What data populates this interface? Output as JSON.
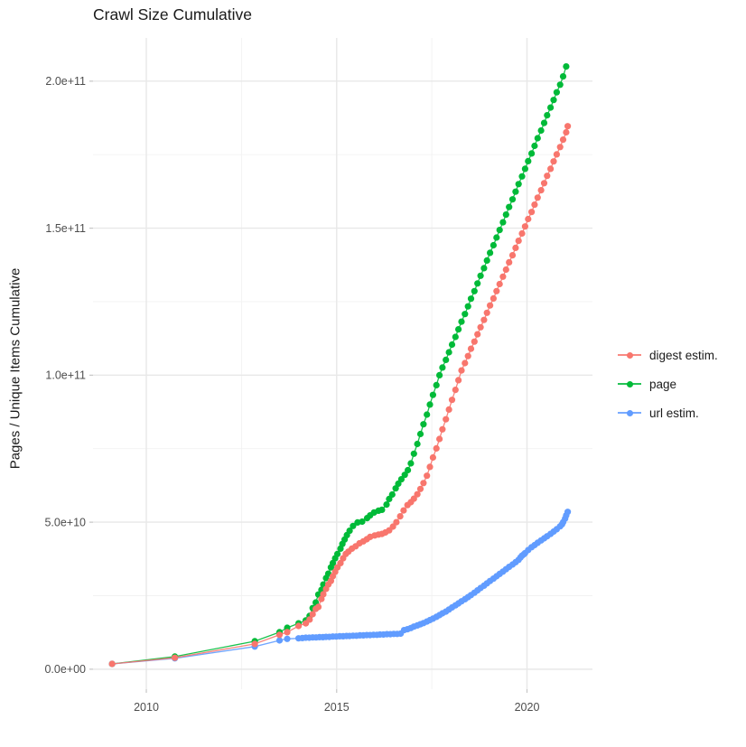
{
  "title": "Crawl Size Cumulative",
  "y_axis_title": "Pages / Unique Items Cumulative",
  "legend": {
    "items": [
      {
        "label": "digest estim.",
        "color": "#F8766D"
      },
      {
        "label": "page",
        "color": "#00BA38"
      },
      {
        "label": "url estim.",
        "color": "#619CFF"
      }
    ]
  },
  "colors": {
    "background": "#FFFFFF",
    "grid_major": "#E8E8E8",
    "grid_minor": "#F2F2F2",
    "tick_mark": "#C6C6C6",
    "tick_text": "#4D4D4D",
    "title_text": "#1A1A1A"
  },
  "chart_data": {
    "type": "line",
    "title": "Crawl Size Cumulative",
    "xlabel": "",
    "ylabel": "Pages / Unique Items Cumulative",
    "grid": true,
    "legend_position": "right",
    "marker": "point",
    "value_unit": "values stored in billions (1e9) of pages / unique items",
    "x_axis": {
      "domain": [
        2008.6,
        2021.72
      ],
      "tick_values": [
        2010,
        2015,
        2020
      ],
      "tick_labels": [
        "2010",
        "2015",
        "2020"
      ],
      "minor_tick_values": [
        2012.5,
        2017.5
      ]
    },
    "y_axis": {
      "domain_e9": [
        -6.8,
        214.7
      ],
      "tick_values_e9": [
        0,
        50,
        100,
        150,
        200
      ],
      "tick_labels": [
        "0.0e+00",
        "5.0e+10",
        "1.0e+11",
        "1.5e+11",
        "2.0e+11"
      ],
      "minor_tick_values_e9": [
        25,
        75,
        125,
        175
      ]
    },
    "series": [
      {
        "name": "digest estim.",
        "color": "#F8766D",
        "points_year_billions": [
          [
            2009.1,
            1.8
          ],
          [
            2010.75,
            3.9
          ],
          [
            2012.85,
            8.6
          ],
          [
            2013.5,
            11.7
          ],
          [
            2013.7,
            12.6
          ],
          [
            2014.0,
            14.7
          ],
          [
            2014.19,
            15.6
          ],
          [
            2014.29,
            16.9
          ],
          [
            2014.37,
            18.7
          ],
          [
            2014.45,
            20.5
          ],
          [
            2014.52,
            21.2
          ],
          [
            2014.6,
            23.9
          ],
          [
            2014.65,
            25.5
          ],
          [
            2014.72,
            27.3
          ],
          [
            2014.78,
            28.8
          ],
          [
            2014.85,
            30.0
          ],
          [
            2014.9,
            31.6
          ],
          [
            2014.96,
            33.1
          ],
          [
            2015.02,
            34.6
          ],
          [
            2015.1,
            36.1
          ],
          [
            2015.17,
            37.7
          ],
          [
            2015.24,
            39.2
          ],
          [
            2015.31,
            40.0
          ],
          [
            2015.4,
            41.0
          ],
          [
            2015.5,
            41.8
          ],
          [
            2015.6,
            42.8
          ],
          [
            2015.7,
            43.5
          ],
          [
            2015.79,
            44.2
          ],
          [
            2015.88,
            45.0
          ],
          [
            2016.0,
            45.5
          ],
          [
            2016.1,
            45.8
          ],
          [
            2016.19,
            46.0
          ],
          [
            2016.28,
            46.5
          ],
          [
            2016.38,
            47.2
          ],
          [
            2016.48,
            48.5
          ],
          [
            2016.57,
            50.0
          ],
          [
            2016.67,
            52.0
          ],
          [
            2016.76,
            54.0
          ],
          [
            2016.86,
            55.8
          ],
          [
            2016.95,
            56.8
          ],
          [
            2017.03,
            58.0
          ],
          [
            2017.12,
            59.5
          ],
          [
            2017.2,
            61.3
          ],
          [
            2017.28,
            63.3
          ],
          [
            2017.37,
            65.8
          ],
          [
            2017.45,
            68.8
          ],
          [
            2017.53,
            72.0
          ],
          [
            2017.62,
            75.1
          ],
          [
            2017.7,
            78.3
          ],
          [
            2017.78,
            81.6
          ],
          [
            2017.87,
            85.0
          ],
          [
            2017.95,
            88.3
          ],
          [
            2018.03,
            91.6
          ],
          [
            2018.12,
            95.0
          ],
          [
            2018.2,
            98.3
          ],
          [
            2018.28,
            101.6
          ],
          [
            2018.37,
            104.1
          ],
          [
            2018.45,
            106.5
          ],
          [
            2018.53,
            109.0
          ],
          [
            2018.62,
            111.4
          ],
          [
            2018.7,
            113.9
          ],
          [
            2018.78,
            116.3
          ],
          [
            2018.87,
            118.8
          ],
          [
            2018.95,
            121.2
          ],
          [
            2019.03,
            123.7
          ],
          [
            2019.12,
            126.1
          ],
          [
            2019.2,
            128.6
          ],
          [
            2019.28,
            131.0
          ],
          [
            2019.37,
            133.5
          ],
          [
            2019.45,
            135.9
          ],
          [
            2019.53,
            138.4
          ],
          [
            2019.62,
            140.8
          ],
          [
            2019.7,
            143.3
          ],
          [
            2019.78,
            145.7
          ],
          [
            2019.87,
            148.2
          ],
          [
            2019.95,
            150.6
          ],
          [
            2020.03,
            153.1
          ],
          [
            2020.12,
            155.5
          ],
          [
            2020.2,
            158.0
          ],
          [
            2020.28,
            160.4
          ],
          [
            2020.37,
            162.9
          ],
          [
            2020.45,
            165.3
          ],
          [
            2020.53,
            167.8
          ],
          [
            2020.62,
            170.2
          ],
          [
            2020.7,
            172.7
          ],
          [
            2020.78,
            175.1
          ],
          [
            2020.87,
            177.6
          ],
          [
            2020.95,
            180.1
          ],
          [
            2021.03,
            182.6
          ],
          [
            2021.07,
            184.7
          ]
        ]
      },
      {
        "name": "page",
        "color": "#00BA38",
        "points_year_billions": [
          [
            2009.1,
            1.8
          ],
          [
            2010.75,
            4.3
          ],
          [
            2012.85,
            9.5
          ],
          [
            2013.5,
            12.6
          ],
          [
            2013.7,
            14.1
          ],
          [
            2014.0,
            15.6
          ],
          [
            2014.19,
            16.6
          ],
          [
            2014.29,
            18.1
          ],
          [
            2014.37,
            20.8
          ],
          [
            2014.45,
            22.7
          ],
          [
            2014.52,
            25.4
          ],
          [
            2014.6,
            27.0
          ],
          [
            2014.65,
            28.8
          ],
          [
            2014.72,
            31.0
          ],
          [
            2014.78,
            32.5
          ],
          [
            2014.85,
            34.6
          ],
          [
            2014.9,
            36.1
          ],
          [
            2014.96,
            37.7
          ],
          [
            2015.02,
            39.2
          ],
          [
            2015.1,
            41.0
          ],
          [
            2015.15,
            42.6
          ],
          [
            2015.21,
            44.1
          ],
          [
            2015.27,
            45.6
          ],
          [
            2015.34,
            47.1
          ],
          [
            2015.43,
            48.7
          ],
          [
            2015.55,
            49.9
          ],
          [
            2015.67,
            50.2
          ],
          [
            2015.8,
            51.4
          ],
          [
            2015.88,
            52.3
          ],
          [
            2015.98,
            53.3
          ],
          [
            2016.1,
            53.9
          ],
          [
            2016.19,
            54.2
          ],
          [
            2016.31,
            56.0
          ],
          [
            2016.38,
            57.9
          ],
          [
            2016.46,
            59.4
          ],
          [
            2016.55,
            61.5
          ],
          [
            2016.62,
            63.1
          ],
          [
            2016.7,
            64.6
          ],
          [
            2016.79,
            66.1
          ],
          [
            2016.87,
            67.7
          ],
          [
            2016.95,
            70.0
          ],
          [
            2017.03,
            73.3
          ],
          [
            2017.12,
            76.6
          ],
          [
            2017.2,
            80.0
          ],
          [
            2017.28,
            83.3
          ],
          [
            2017.37,
            86.6
          ],
          [
            2017.45,
            90.0
          ],
          [
            2017.53,
            93.3
          ],
          [
            2017.62,
            96.6
          ],
          [
            2017.7,
            100.0
          ],
          [
            2017.78,
            102.6
          ],
          [
            2017.87,
            105.2
          ],
          [
            2017.95,
            107.8
          ],
          [
            2018.03,
            110.4
          ],
          [
            2018.12,
            113.0
          ],
          [
            2018.2,
            115.6
          ],
          [
            2018.28,
            118.2
          ],
          [
            2018.37,
            120.8
          ],
          [
            2018.45,
            123.4
          ],
          [
            2018.53,
            126.0
          ],
          [
            2018.62,
            128.6
          ],
          [
            2018.7,
            131.2
          ],
          [
            2018.78,
            133.8
          ],
          [
            2018.87,
            136.4
          ],
          [
            2018.95,
            139.0
          ],
          [
            2019.03,
            141.6
          ],
          [
            2019.12,
            144.2
          ],
          [
            2019.2,
            146.8
          ],
          [
            2019.28,
            149.4
          ],
          [
            2019.37,
            152.0
          ],
          [
            2019.45,
            154.6
          ],
          [
            2019.53,
            157.2
          ],
          [
            2019.62,
            159.8
          ],
          [
            2019.7,
            162.4
          ],
          [
            2019.78,
            165.0
          ],
          [
            2019.87,
            167.6
          ],
          [
            2019.95,
            170.2
          ],
          [
            2020.03,
            172.8
          ],
          [
            2020.12,
            175.4
          ],
          [
            2020.2,
            178.0
          ],
          [
            2020.28,
            180.6
          ],
          [
            2020.37,
            183.2
          ],
          [
            2020.45,
            185.8
          ],
          [
            2020.53,
            188.4
          ],
          [
            2020.62,
            191.0
          ],
          [
            2020.7,
            193.6
          ],
          [
            2020.78,
            196.2
          ],
          [
            2020.87,
            198.8
          ],
          [
            2020.95,
            201.6
          ],
          [
            2021.03,
            205.0
          ]
        ]
      },
      {
        "name": "url estim.",
        "color": "#619CFF",
        "points_year_billions": [
          [
            2009.1,
            1.8
          ],
          [
            2010.75,
            3.7
          ],
          [
            2012.85,
            7.7
          ],
          [
            2013.5,
            9.8
          ],
          [
            2013.7,
            10.3
          ],
          [
            2014.0,
            10.5
          ],
          [
            2014.1,
            10.6
          ],
          [
            2014.19,
            10.7
          ],
          [
            2014.28,
            10.7
          ],
          [
            2014.37,
            10.8
          ],
          [
            2014.46,
            10.8
          ],
          [
            2014.55,
            10.9
          ],
          [
            2014.64,
            10.9
          ],
          [
            2014.72,
            11.0
          ],
          [
            2014.81,
            11.0
          ],
          [
            2014.9,
            11.1
          ],
          [
            2014.99,
            11.1
          ],
          [
            2015.08,
            11.2
          ],
          [
            2015.17,
            11.2
          ],
          [
            2015.26,
            11.3
          ],
          [
            2015.34,
            11.3
          ],
          [
            2015.43,
            11.4
          ],
          [
            2015.52,
            11.4
          ],
          [
            2015.61,
            11.5
          ],
          [
            2015.7,
            11.5
          ],
          [
            2015.79,
            11.6
          ],
          [
            2015.88,
            11.6
          ],
          [
            2015.97,
            11.7
          ],
          [
            2016.06,
            11.7
          ],
          [
            2016.14,
            11.8
          ],
          [
            2016.23,
            11.8
          ],
          [
            2016.32,
            11.9
          ],
          [
            2016.41,
            11.9
          ],
          [
            2016.5,
            12.0
          ],
          [
            2016.59,
            12.0
          ],
          [
            2016.68,
            12.1
          ],
          [
            2016.77,
            13.3
          ],
          [
            2016.86,
            13.6
          ],
          [
            2016.95,
            14.0
          ],
          [
            2017.03,
            14.5
          ],
          [
            2017.12,
            14.9
          ],
          [
            2017.2,
            15.3
          ],
          [
            2017.28,
            15.7
          ],
          [
            2017.37,
            16.2
          ],
          [
            2017.45,
            16.7
          ],
          [
            2017.53,
            17.2
          ],
          [
            2017.62,
            17.8
          ],
          [
            2017.7,
            18.4
          ],
          [
            2017.78,
            19.0
          ],
          [
            2017.87,
            19.6
          ],
          [
            2017.95,
            20.3
          ],
          [
            2018.03,
            21.0
          ],
          [
            2018.12,
            21.7
          ],
          [
            2018.2,
            22.4
          ],
          [
            2018.28,
            23.1
          ],
          [
            2018.37,
            23.8
          ],
          [
            2018.45,
            24.5
          ],
          [
            2018.53,
            25.2
          ],
          [
            2018.62,
            26.0
          ],
          [
            2018.7,
            26.8
          ],
          [
            2018.78,
            27.6
          ],
          [
            2018.87,
            28.4
          ],
          [
            2018.95,
            29.2
          ],
          [
            2019.03,
            30.0
          ],
          [
            2019.12,
            30.8
          ],
          [
            2019.2,
            31.6
          ],
          [
            2019.28,
            32.4
          ],
          [
            2019.37,
            33.2
          ],
          [
            2019.45,
            34.0
          ],
          [
            2019.53,
            34.8
          ],
          [
            2019.62,
            35.6
          ],
          [
            2019.7,
            36.4
          ],
          [
            2019.78,
            37.2
          ],
          [
            2019.83,
            38.0
          ],
          [
            2019.87,
            38.6
          ],
          [
            2019.92,
            39.1
          ],
          [
            2019.95,
            39.5
          ],
          [
            2020.03,
            40.5
          ],
          [
            2020.12,
            41.5
          ],
          [
            2020.2,
            42.2
          ],
          [
            2020.28,
            43.0
          ],
          [
            2020.37,
            43.8
          ],
          [
            2020.45,
            44.5
          ],
          [
            2020.53,
            45.2
          ],
          [
            2020.62,
            46.0
          ],
          [
            2020.7,
            46.8
          ],
          [
            2020.78,
            47.6
          ],
          [
            2020.87,
            48.6
          ],
          [
            2020.92,
            49.3
          ],
          [
            2020.95,
            50.0
          ],
          [
            2021.0,
            51.2
          ],
          [
            2021.03,
            52.3
          ],
          [
            2021.07,
            53.5
          ]
        ]
      }
    ]
  }
}
